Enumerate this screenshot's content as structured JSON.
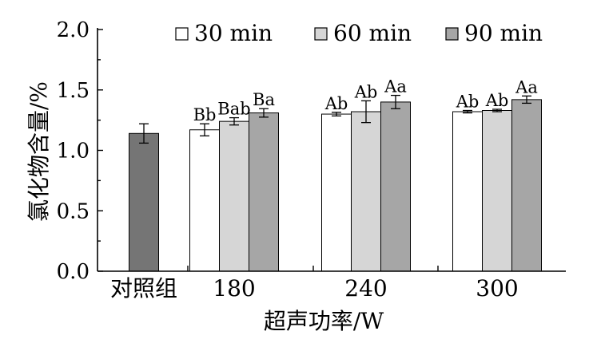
{
  "chart_data": {
    "type": "bar",
    "categories": [
      "对照组",
      "180",
      "240",
      "300"
    ],
    "xlabel": "超声功率/W",
    "ylabel": "氯化物含量/%",
    "ylim": [
      0,
      2.0
    ],
    "yticks": [
      "0.0",
      "0.5",
      "1.0",
      "1.5",
      "2.0"
    ],
    "grid": false,
    "legend_position": "top",
    "control": {
      "category": "对照组",
      "value": 1.14,
      "error": 0.08,
      "color": "#757575"
    },
    "series": [
      {
        "name": "30 min",
        "color": "#ffffff",
        "values": [
          null,
          1.17,
          1.3,
          1.32
        ],
        "errors": [
          null,
          0.05,
          0.015,
          0.01
        ],
        "labels": [
          "",
          "Bb",
          "Ab",
          "Ab"
        ]
      },
      {
        "name": "60 min",
        "color": "#d6d6d6",
        "values": [
          null,
          1.24,
          1.32,
          1.33
        ],
        "errors": [
          null,
          0.03,
          0.09,
          0.01
        ],
        "labels": [
          "",
          "Bab",
          "Ab",
          "Ab"
        ]
      },
      {
        "name": "90 min",
        "color": "#a6a6a6",
        "values": [
          null,
          1.31,
          1.4,
          1.42
        ],
        "errors": [
          null,
          0.035,
          0.055,
          0.03
        ],
        "labels": [
          "",
          "Ba",
          "Aa",
          "Aa"
        ]
      }
    ]
  }
}
